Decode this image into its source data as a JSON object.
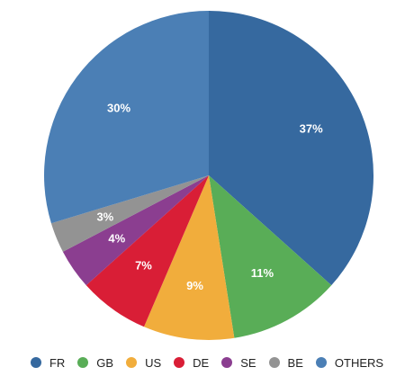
{
  "chart_data": {
    "type": "pie",
    "title": "",
    "legend_position": "bottom",
    "slices": [
      {
        "name": "FR",
        "value": 37,
        "label": "37%",
        "color": "#36699f"
      },
      {
        "name": "GB",
        "value": 11,
        "label": "11%",
        "color": "#59ad57"
      },
      {
        "name": "US",
        "value": 9,
        "label": "9%",
        "color": "#f1ad3c"
      },
      {
        "name": "DE",
        "value": 7,
        "label": "7%",
        "color": "#d91e36"
      },
      {
        "name": "SE",
        "value": 4,
        "label": "4%",
        "color": "#8b3e90"
      },
      {
        "name": "BE",
        "value": 3,
        "label": "3%",
        "color": "#939393"
      },
      {
        "name": "OTHERS",
        "value": 30,
        "label": "30%",
        "color": "#4b7fb5"
      }
    ]
  }
}
